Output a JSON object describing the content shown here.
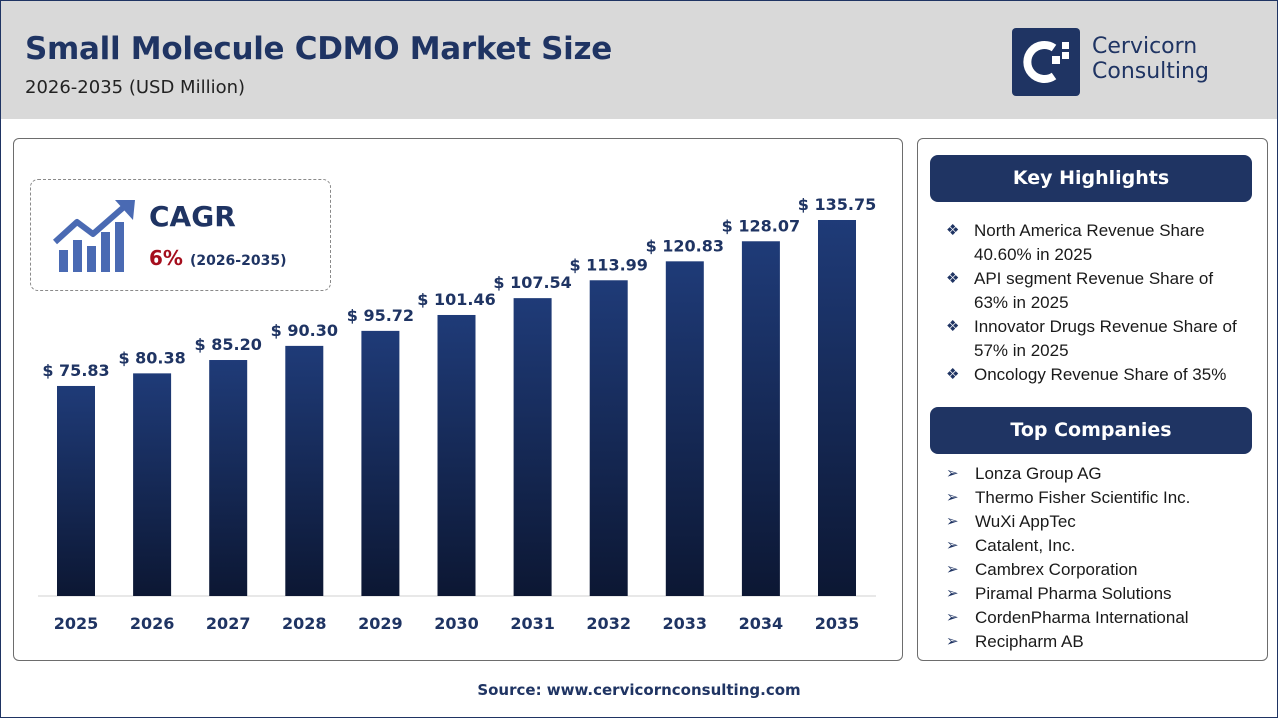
{
  "header": {
    "title": "Small Molecule CDMO Market Size",
    "subtitle": "2026-2035 (USD Million)",
    "logo_line1": "Cervicorn",
    "logo_line2": "Consulting"
  },
  "cagr": {
    "label": "CAGR",
    "value": "6%",
    "period": "(2026-2035)"
  },
  "chart_data": {
    "type": "bar",
    "categories": [
      "2025",
      "2026",
      "2027",
      "2028",
      "2029",
      "2030",
      "2031",
      "2032",
      "2033",
      "2034",
      "2035"
    ],
    "values": [
      75.83,
      80.38,
      85.2,
      90.3,
      95.72,
      101.46,
      107.54,
      113.99,
      120.83,
      128.07,
      135.75
    ],
    "value_labels": [
      "$ 75.83",
      "$ 80.38",
      "$ 85.20",
      "$ 90.30",
      "$ 95.72",
      "$ 101.46",
      "$ 107.54",
      "$ 113.99",
      "$ 120.83",
      "$ 128.07",
      "$ 135.75"
    ],
    "title": "Small Molecule CDMO Market Size",
    "xlabel": "",
    "ylabel": "",
    "ylim": [
      0,
      145
    ],
    "grid": false,
    "legend": "none",
    "colors": {
      "bar_top": "#1f3b78",
      "bar_bottom": "#0c1733",
      "label": "#1f3463"
    }
  },
  "highlights": {
    "heading": "Key Highlights",
    "items": [
      {
        "line1": "North America Revenue Share",
        "line2": "40.60% in 2025"
      },
      {
        "line1": "API segment Revenue Share of",
        "line2": "63% in 2025"
      },
      {
        "line1": "Innovator Drugs Revenue Share of",
        "line2": "57% in 2025"
      },
      {
        "line1": "Oncology Revenue Share of 35%",
        "line2": ""
      }
    ]
  },
  "companies": {
    "heading": "Top Companies",
    "items": [
      "Lonza Group AG",
      "Thermo Fisher Scientific Inc.",
      "WuXi AppTec",
      "Catalent, Inc.",
      "Cambrex Corporation",
      "Piramal Pharma Solutions",
      "CordenPharma International",
      "Recipharm AB"
    ]
  },
  "source": "Source: www.cervicornconsulting.com",
  "icons": {
    "highlight_bullet": "diamond-cluster-icon",
    "company_bullet": "arrow-right-icon",
    "cagr": "growth-chart-icon"
  },
  "colors": {
    "brand": "#1f3463",
    "accent_red": "#a50e1d",
    "header_bg": "#d9d9d9"
  }
}
